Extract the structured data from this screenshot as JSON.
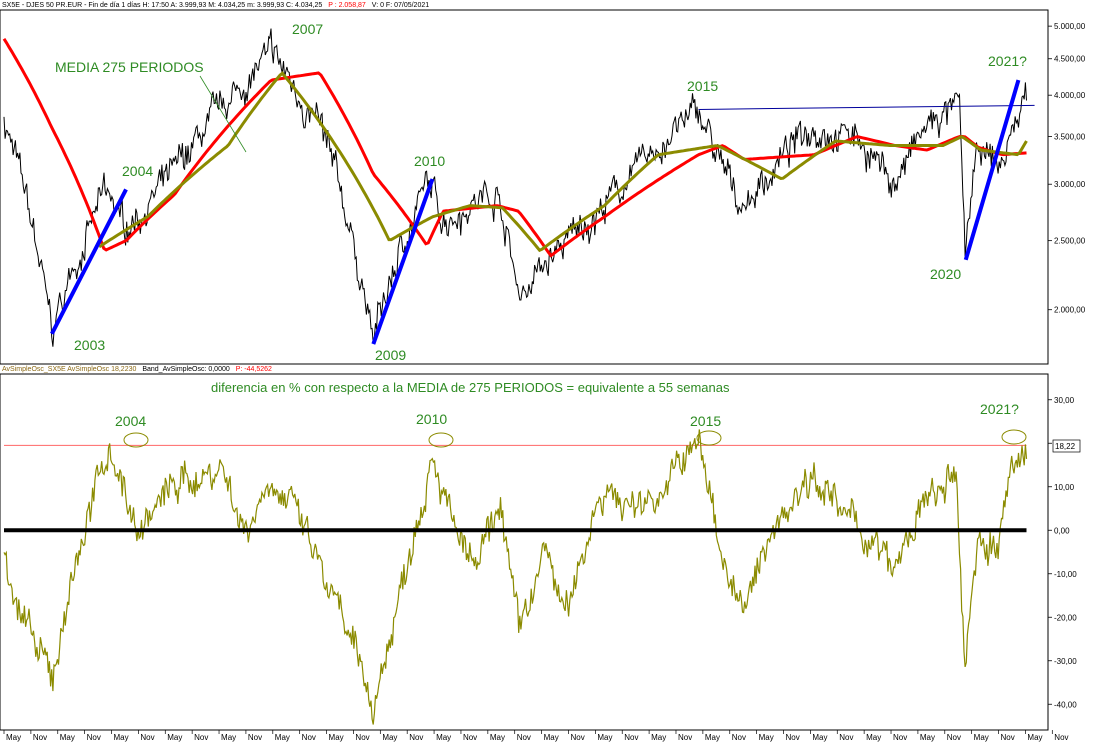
{
  "header_top": {
    "text": "SX5E - DJES 50 PR.EUR - Fin de día 1 días  H: 17:50  A: 3.999,93  M: 4.034,25  m: 3.999,93  C: 4.034,25",
    "p_value": "P : 2.058,87",
    "rest": "V: 0  F: 07/05/2021"
  },
  "header_bottom": {
    "osc": "AvSimpleOsc_SX5E  AvSimpleOsc  18,2230",
    "band": "Band_AvSimpleOsc: 0,0000",
    "p_value": "P: -44,5262"
  },
  "annotations": {
    "media": "MEDIA 275 PERIODOS",
    "osc_title": "diferencia en % con respecto a la MEDIA de 275 PERIODOS = equivalente a 55 semanas",
    "badge": "18,22"
  },
  "colors": {
    "price": "#000000",
    "ma275": "#ff0000",
    "ma_olive": "#8b8b00",
    "trend": "#0000ff",
    "resistance": "#00009c",
    "osc": "#8b8b00",
    "zero_band": "#000000",
    "osc_resistance": "#ff6666",
    "annotation": "#2e8b23"
  },
  "chart_data": [
    {
      "type": "line",
      "scale": "log",
      "ylim": [
        1700,
        5200
      ],
      "y_ticks": [
        "5.000,00",
        "4.500,00",
        "4.000,00",
        "3.500,00",
        "3.000,00",
        "2.500,00",
        "2.000,00"
      ],
      "y_tick_values": [
        5000,
        4500,
        4000,
        3500,
        3000,
        2500,
        2000
      ],
      "x": [
        2002.33,
        2003.22,
        2004.2,
        2004.6,
        2005.5,
        2007.3,
        2008.2,
        2009.2,
        2010.2,
        2010.5,
        2011.5,
        2011.9,
        2012.5,
        2013.5,
        2015.25,
        2015.7,
        2016.1,
        2017.4,
        2018.2,
        2018.9,
        2019.5,
        2020.1,
        2020.2,
        2020.45,
        2020.9,
        2021.35
      ],
      "series": [
        {
          "name": "SX5E",
          "values": [
            3700,
            1850,
            2900,
            2600,
            3100,
            4550,
            3600,
            1810,
            3000,
            2700,
            2950,
            2100,
            2350,
            2800,
            3800,
            3100,
            2800,
            3650,
            3500,
            3000,
            3600,
            3850,
            2400,
            3300,
            3200,
            4034
          ]
        },
        {
          "name": "MEDIA 275 PERIODOS",
          "values": [
            4800,
            3600,
            2420,
            2500,
            2900,
            4200,
            4300,
            3100,
            2460,
            2750,
            2800,
            2750,
            2380,
            2700,
            3300,
            3400,
            3250,
            3300,
            3500,
            3400,
            3350,
            3500,
            3500,
            3380,
            3300,
            3320
          ]
        }
      ],
      "ma_olive": {
        "x": [
          2004.1,
          2005,
          2006.5,
          2007.5,
          2009.5,
          2010.3,
          2011,
          2011.6,
          2012.3,
          2013.5,
          2014.5,
          2015.6,
          2016.8,
          2017.8,
          2018.8,
          2019.8,
          2020.15,
          2020.5,
          2021.2,
          2021.35
        ],
        "values": [
          2450,
          2700,
          3400,
          4300,
          2500,
          2700,
          2800,
          2780,
          2420,
          2800,
          3300,
          3400,
          3050,
          3450,
          3400,
          3400,
          3500,
          3350,
          3300,
          3450
        ]
      },
      "trend_lines": [
        {
          "x": [
            2003.22,
            2004.6
          ],
          "values": [
            1850,
            2950
          ]
        },
        {
          "x": [
            2009.2,
            2010.3
          ],
          "values": [
            1790,
            3050
          ]
        },
        {
          "x": [
            2020.22,
            2021.2
          ],
          "values": [
            2350,
            4200
          ]
        }
      ],
      "resistance": {
        "x": [
          2015.25,
          2021.5
        ],
        "values": [
          3820,
          3870
        ]
      },
      "annotations": [
        "2003",
        "2004",
        "2007",
        "2009",
        "2010",
        "2015",
        "2020",
        "2021?"
      ]
    },
    {
      "type": "line",
      "ylim": [
        -45,
        35
      ],
      "y_ticks": [
        "30,00",
        "20,00",
        "10,00",
        "0,00",
        "-10,00",
        "-20,00",
        "-30,00",
        "-40,00"
      ],
      "y_tick_values": [
        30,
        20,
        10,
        0,
        -10,
        -20,
        -30,
        -40
      ],
      "x": [
        2002.33,
        2002.8,
        2003.22,
        2003.6,
        2004.3,
        2004.8,
        2005.5,
        2006.4,
        2006.8,
        2007.3,
        2007.9,
        2008.4,
        2009.2,
        2009.6,
        2010.3,
        2010.7,
        2011.1,
        2011.6,
        2011.9,
        2012.4,
        2012.8,
        2013.4,
        2014.0,
        2014.6,
        2015.25,
        2015.7,
        2016.1,
        2016.6,
        2017.4,
        2017.9,
        2018.3,
        2018.9,
        2019.4,
        2019.9,
        2020.05,
        2020.2,
        2020.45,
        2020.8,
        2021.0,
        2021.35
      ],
      "series": [
        {
          "name": "AvSimpleOsc_SX5E",
          "values": [
            -5,
            -25,
            -35,
            -10,
            20,
            0,
            10,
            15,
            0,
            13,
            0,
            -15,
            -40,
            -20,
            20,
            0,
            -10,
            5,
            -25,
            -5,
            -20,
            10,
            5,
            10,
            20,
            -5,
            -20,
            0,
            15,
            3,
            0,
            -10,
            5,
            10,
            10,
            -32,
            0,
            -5,
            10,
            18.22
          ]
        }
      ],
      "zero_band": 0,
      "resistance": 19.5,
      "annotations": [
        "2004",
        "2010",
        "2015",
        "2021?"
      ]
    }
  ],
  "x_axis": [
    "May",
    "Nov",
    "May",
    "Nov",
    "May",
    "Nov",
    "May",
    "Nov",
    "May",
    "Nov",
    "May",
    "Nov",
    "May",
    "Nov",
    "May",
    "Nov",
    "May",
    "Nov",
    "May",
    "Nov",
    "May",
    "Nov",
    "May",
    "Nov",
    "May",
    "Nov",
    "May",
    "Nov",
    "May",
    "Nov",
    "May",
    "Nov",
    "May",
    "Nov",
    "May",
    "Nov",
    "May",
    "Nov",
    "May",
    "Nov"
  ]
}
